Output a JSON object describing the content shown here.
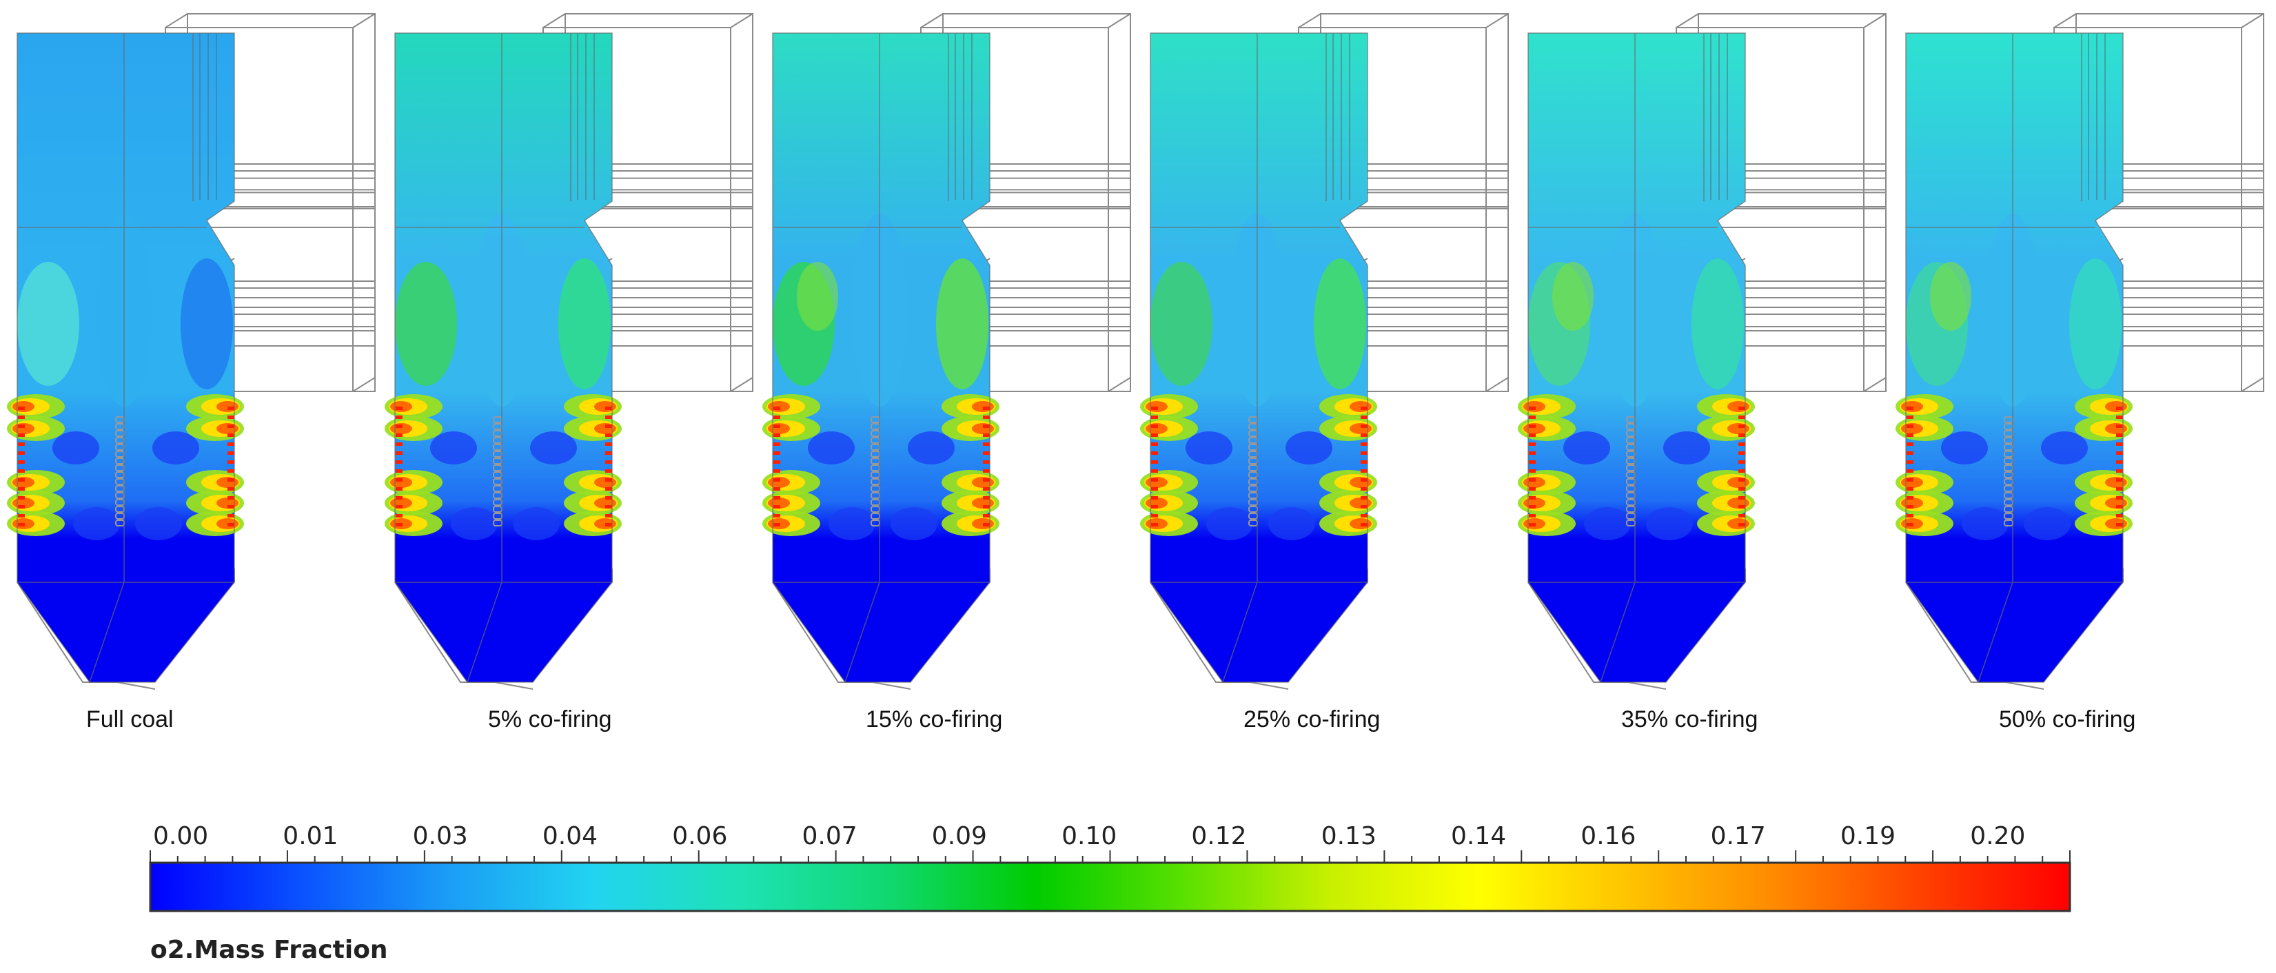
{
  "cases": [
    {
      "label": "Full coal",
      "upper": "#2aa6ef",
      "mid": "#2fb0f0",
      "side": "#50dcd8",
      "edge": "#1e7cf0",
      "hot": 0.1
    },
    {
      "label": "5% co-firing",
      "upper": "#24d8bc",
      "mid": "#36b8ee",
      "side": "#3ad260",
      "edge": "#2ee080",
      "hot": 0.4
    },
    {
      "label": "15% co-firing",
      "upper": "#2ddcc4",
      "mid": "#34b2ee",
      "side": "#2ed45a",
      "edge": "#62e040",
      "hot": 0.7
    },
    {
      "label": "25% co-firing",
      "upper": "#2ee0c6",
      "mid": "#36b6ee",
      "side": "#3ccf6e",
      "edge": "#44e05a",
      "hot": 0.5
    },
    {
      "label": "35% co-firing",
      "upper": "#30e2cc",
      "mid": "#38baee",
      "side": "#48d690",
      "edge": "#34dcae",
      "hot": 0.6
    },
    {
      "label": "50% co-firing",
      "upper": "#2ee2d0",
      "mid": "#36b8ee",
      "side": "#3cd4a6",
      "edge": "#34dac0",
      "hot": 0.6
    }
  ],
  "colorbar": {
    "title": "o2.Mass Fraction",
    "ticks": [
      "0.00",
      "0.01",
      "0.03",
      "0.04",
      "0.06",
      "0.07",
      "0.09",
      "0.10",
      "0.12",
      "0.13",
      "0.14",
      "0.16",
      "0.17",
      "0.19",
      "0.20"
    ],
    "colormap": [
      "#0000ff",
      "#0a50ff",
      "#1a9cf6",
      "#22d4f0",
      "#1ee2b4",
      "#10d870",
      "#00cc00",
      "#5ae000",
      "#c8f000",
      "#ffff00",
      "#ffc400",
      "#ff8a00",
      "#ff4000",
      "#ff0000"
    ]
  },
  "wireframe_color": "#8a8a8a"
}
